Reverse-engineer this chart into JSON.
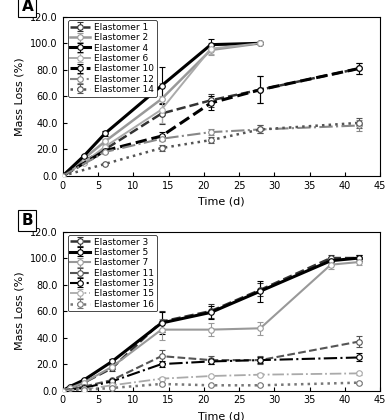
{
  "panel_A": {
    "series": [
      {
        "label": "Elastomer 1",
        "color": "#333333",
        "linestyle": "--",
        "linewidth": 1.8,
        "marker": "o",
        "markersize": 4,
        "markerfacecolor": "white",
        "x": [
          0,
          3,
          6,
          14,
          21,
          28,
          42
        ],
        "y": [
          0.0,
          11,
          20,
          47,
          57,
          65,
          81
        ],
        "yerr": [
          0,
          1,
          2,
          8,
          5,
          10,
          4
        ]
      },
      {
        "label": "Elastomer 2",
        "color": "#999999",
        "linestyle": "-",
        "linewidth": 1.8,
        "marker": "o",
        "markersize": 4,
        "markerfacecolor": "white",
        "x": [
          0,
          3,
          6,
          14,
          21,
          28
        ],
        "y": [
          0.0,
          13,
          26,
          58,
          95,
          100
        ],
        "yerr": [
          0,
          1,
          2,
          12,
          4,
          0
        ]
      },
      {
        "label": "Elastomer 4",
        "color": "#000000",
        "linestyle": "-",
        "linewidth": 2.2,
        "marker": "o",
        "markersize": 4,
        "markerfacecolor": "white",
        "x": [
          0,
          3,
          6,
          14,
          21,
          28
        ],
        "y": [
          0.0,
          15,
          32,
          68,
          99,
          100
        ],
        "yerr": [
          0,
          1,
          2,
          14,
          4,
          0
        ]
      },
      {
        "label": "Elastomer 6",
        "color": "#aaaaaa",
        "linestyle": "-",
        "linewidth": 1.4,
        "marker": "o",
        "markersize": 4,
        "markerfacecolor": "white",
        "x": [
          0,
          3,
          6,
          14,
          21,
          28
        ],
        "y": [
          0.0,
          10,
          22,
          50,
          96,
          100
        ],
        "yerr": [
          0,
          1,
          1,
          10,
          4,
          0
        ]
      },
      {
        "label": "Elastomer 10",
        "color": "#000000",
        "linestyle": "--",
        "linewidth": 2.2,
        "marker": "o",
        "markersize": 4,
        "markerfacecolor": "white",
        "x": [
          0,
          6,
          14,
          21,
          28,
          42
        ],
        "y": [
          0.0,
          19,
          30,
          55,
          65,
          81
        ],
        "yerr": [
          0,
          1,
          3,
          5,
          10,
          4
        ]
      },
      {
        "label": "Elastomer 12",
        "color": "#888888",
        "linestyle": "-.",
        "linewidth": 1.5,
        "marker": "o",
        "markersize": 4,
        "markerfacecolor": "white",
        "x": [
          0,
          6,
          14,
          21,
          28,
          42
        ],
        "y": [
          0.0,
          18,
          28,
          33,
          35,
          38
        ],
        "yerr": [
          0,
          1,
          2,
          2,
          3,
          4
        ]
      },
      {
        "label": "Elastomer 14",
        "color": "#555555",
        "linestyle": ":",
        "linewidth": 1.8,
        "marker": "o",
        "markersize": 4,
        "markerfacecolor": "white",
        "x": [
          0,
          6,
          14,
          21,
          28,
          42
        ],
        "y": [
          0.0,
          9,
          21,
          27,
          35,
          40
        ],
        "yerr": [
          0,
          1,
          2,
          2,
          3,
          4
        ]
      }
    ]
  },
  "panel_B": {
    "series": [
      {
        "label": "Elastomer 3",
        "color": "#333333",
        "linestyle": "--",
        "linewidth": 1.8,
        "marker": "o",
        "markersize": 4,
        "markerfacecolor": "white",
        "x": [
          0,
          1,
          3,
          7,
          14,
          21,
          28,
          38,
          42
        ],
        "y": [
          0.0,
          2,
          6,
          17,
          52,
          60,
          76,
          100,
          100
        ],
        "yerr": [
          0,
          0.5,
          1,
          2,
          8,
          5,
          5,
          2,
          2
        ]
      },
      {
        "label": "Elastomer 5",
        "color": "#000000",
        "linestyle": "-",
        "linewidth": 2.2,
        "marker": "o",
        "markersize": 4,
        "markerfacecolor": "white",
        "x": [
          0,
          1,
          3,
          7,
          14,
          21,
          28,
          38,
          42
        ],
        "y": [
          0.0,
          3,
          8,
          22,
          51,
          59,
          75,
          98,
          100
        ],
        "yerr": [
          0,
          0.5,
          1,
          2,
          8,
          5,
          8,
          3,
          2
        ]
      },
      {
        "label": "Elastomer 7",
        "color": "#999999",
        "linestyle": "-",
        "linewidth": 1.5,
        "marker": "o",
        "markersize": 4,
        "markerfacecolor": "white",
        "x": [
          0,
          1,
          3,
          7,
          14,
          21,
          28,
          38,
          42
        ],
        "y": [
          0.0,
          2,
          6,
          18,
          46,
          46,
          47,
          95,
          97
        ],
        "yerr": [
          0,
          0.5,
          1,
          2,
          8,
          5,
          5,
          3,
          2
        ]
      },
      {
        "label": "Elastomer 11",
        "color": "#555555",
        "linestyle": "--",
        "linewidth": 1.5,
        "marker": "o",
        "markersize": 4,
        "markerfacecolor": "white",
        "x": [
          0,
          3,
          7,
          14,
          21,
          28,
          42
        ],
        "y": [
          0.0,
          3,
          8,
          26,
          23,
          23,
          37
        ],
        "yerr": [
          0,
          0.5,
          1,
          5,
          3,
          3,
          4
        ]
      },
      {
        "label": "Elastomer 13",
        "color": "#000000",
        "linestyle": "-.",
        "linewidth": 1.5,
        "marker": "o",
        "markersize": 4,
        "markerfacecolor": "white",
        "x": [
          0,
          3,
          7,
          14,
          21,
          28,
          42
        ],
        "y": [
          0.0,
          2,
          7,
          20,
          22,
          23,
          25
        ],
        "yerr": [
          0,
          0.5,
          1,
          2,
          2,
          2,
          3
        ]
      },
      {
        "label": "Elastomer 15",
        "color": "#aaaaaa",
        "linestyle": "-.",
        "linewidth": 1.3,
        "marker": "o",
        "markersize": 4,
        "markerfacecolor": "white",
        "x": [
          0,
          3,
          7,
          14,
          21,
          28,
          42
        ],
        "y": [
          0.0,
          1,
          4,
          9,
          11,
          12,
          13
        ],
        "yerr": [
          0,
          0.3,
          0.5,
          1,
          1,
          1,
          1
        ]
      },
      {
        "label": "Elastomer 16",
        "color": "#777777",
        "linestyle": ":",
        "linewidth": 1.8,
        "marker": "o",
        "markersize": 4,
        "markerfacecolor": "white",
        "x": [
          0,
          3,
          7,
          14,
          21,
          28,
          42
        ],
        "y": [
          0.0,
          0.5,
          2,
          5,
          4,
          4,
          6
        ],
        "yerr": [
          0,
          0.3,
          0.4,
          0.8,
          0.5,
          0.5,
          0.8
        ]
      }
    ]
  },
  "ylabel": "Mass Loss (%)",
  "xlabel": "Time (d)",
  "ylim": [
    0,
    120
  ],
  "yticks": [
    0.0,
    20.0,
    40.0,
    60.0,
    80.0,
    100.0,
    120.0
  ],
  "xlim": [
    0,
    45
  ],
  "xticks": [
    0,
    5,
    10,
    15,
    20,
    25,
    30,
    35,
    40,
    45
  ],
  "legend_fontsize": 6.5,
  "tick_fontsize": 7,
  "label_fontsize": 8,
  "background_color": "#ffffff",
  "panel_label_A": "A",
  "panel_label_B": "B"
}
